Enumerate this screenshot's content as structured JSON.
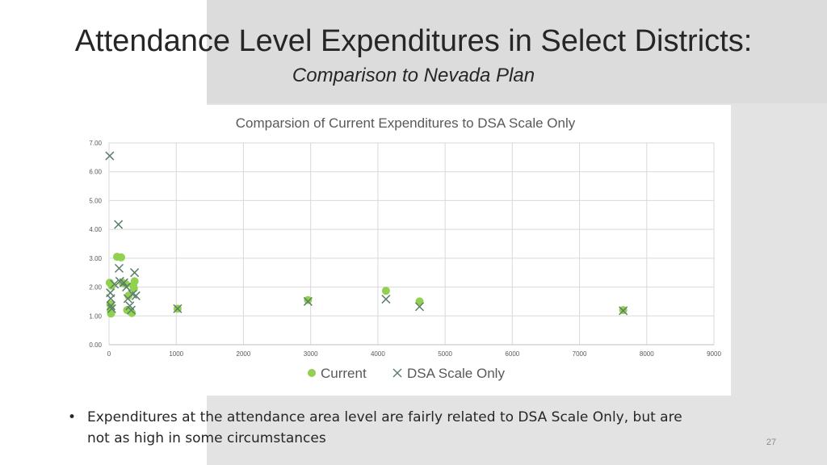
{
  "slide": {
    "title": "Attendance Level Expenditures in Select Districts:",
    "subtitle": "Comparison to Nevada Plan",
    "bullet_symbol": "•",
    "bullet_text": "Expenditures at the attendance area level are fairly related to DSA Scale Only, but are not as high in some circumstances",
    "page_number": "27"
  },
  "chart_data": {
    "type": "scatter",
    "title": "Comparsion of Current Expenditures to DSA Scale Only",
    "xlim": [
      0,
      9000
    ],
    "ylim": [
      0,
      7
    ],
    "x_ticks": [
      "0",
      "1000",
      "2000",
      "3000",
      "4000",
      "5000",
      "6000",
      "7000",
      "8000",
      "9000"
    ],
    "y_ticks": [
      "0.00",
      "1.00",
      "2.00",
      "3.00",
      "4.00",
      "5.00",
      "6.00",
      "7.00"
    ],
    "grid": true,
    "legend_position": "bottom",
    "series": [
      {
        "name": "Current",
        "marker": "circle",
        "color": "#92d050",
        "points": [
          {
            "x": 10,
            "y": 2.15
          },
          {
            "x": 20,
            "y": 1.4
          },
          {
            "x": 25,
            "y": 1.2
          },
          {
            "x": 30,
            "y": 1.08
          },
          {
            "x": 40,
            "y": 2.05
          },
          {
            "x": 120,
            "y": 3.05
          },
          {
            "x": 180,
            "y": 3.03
          },
          {
            "x": 200,
            "y": 2.15
          },
          {
            "x": 250,
            "y": 2.1
          },
          {
            "x": 270,
            "y": 1.2
          },
          {
            "x": 290,
            "y": 1.7
          },
          {
            "x": 320,
            "y": 1.15
          },
          {
            "x": 340,
            "y": 1.1
          },
          {
            "x": 360,
            "y": 2.05
          },
          {
            "x": 370,
            "y": 1.95
          },
          {
            "x": 380,
            "y": 2.2
          },
          {
            "x": 1020,
            "y": 1.25
          },
          {
            "x": 2960,
            "y": 1.55
          },
          {
            "x": 4120,
            "y": 1.87
          },
          {
            "x": 4620,
            "y": 1.5
          },
          {
            "x": 7650,
            "y": 1.2
          }
        ]
      },
      {
        "name": "DSA Scale Only",
        "marker": "x",
        "color": "#5b7f6b",
        "points": [
          {
            "x": 10,
            "y": 6.55
          },
          {
            "x": 20,
            "y": 1.8
          },
          {
            "x": 25,
            "y": 1.6
          },
          {
            "x": 30,
            "y": 1.35
          },
          {
            "x": 40,
            "y": 1.25
          },
          {
            "x": 80,
            "y": 2.1
          },
          {
            "x": 140,
            "y": 4.17
          },
          {
            "x": 150,
            "y": 2.65
          },
          {
            "x": 160,
            "y": 2.2
          },
          {
            "x": 220,
            "y": 2.15
          },
          {
            "x": 260,
            "y": 2.0
          },
          {
            "x": 280,
            "y": 1.6
          },
          {
            "x": 310,
            "y": 1.35
          },
          {
            "x": 330,
            "y": 1.2
          },
          {
            "x": 350,
            "y": 1.75
          },
          {
            "x": 380,
            "y": 2.5
          },
          {
            "x": 400,
            "y": 1.7
          },
          {
            "x": 1020,
            "y": 1.25
          },
          {
            "x": 2960,
            "y": 1.5
          },
          {
            "x": 4120,
            "y": 1.58
          },
          {
            "x": 4620,
            "y": 1.32
          },
          {
            "x": 7650,
            "y": 1.18
          }
        ]
      }
    ]
  }
}
